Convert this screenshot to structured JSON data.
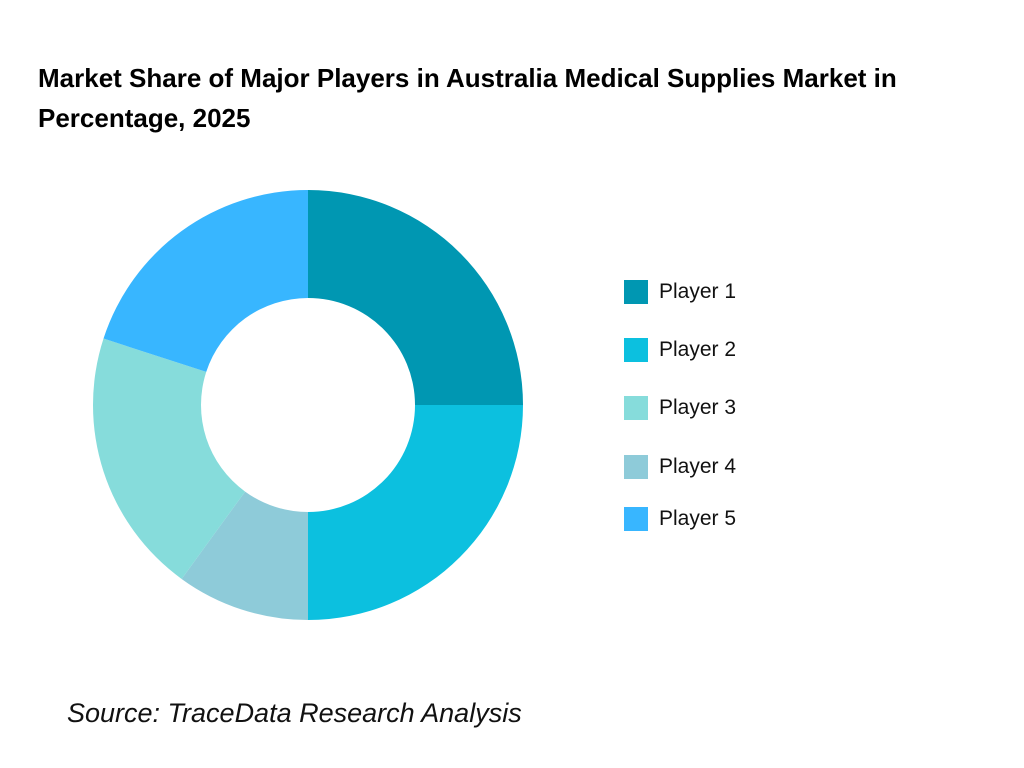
{
  "chart_data": {
    "type": "pie",
    "variant": "donut",
    "title": "Market Share of Major Players in Australia Medical Supplies Market in Percentage, 2025",
    "categories": [
      "Player 1",
      "Player 2",
      "Player 3",
      "Player 4",
      "Player 5"
    ],
    "values": [
      25,
      25,
      20,
      10,
      20
    ],
    "colors": [
      "#0097b2",
      "#0cc0df",
      "#86dcdb",
      "#8ecbd9",
      "#38b6ff"
    ],
    "legend_position": "right",
    "source": "Source: TraceData Research Analysis"
  }
}
